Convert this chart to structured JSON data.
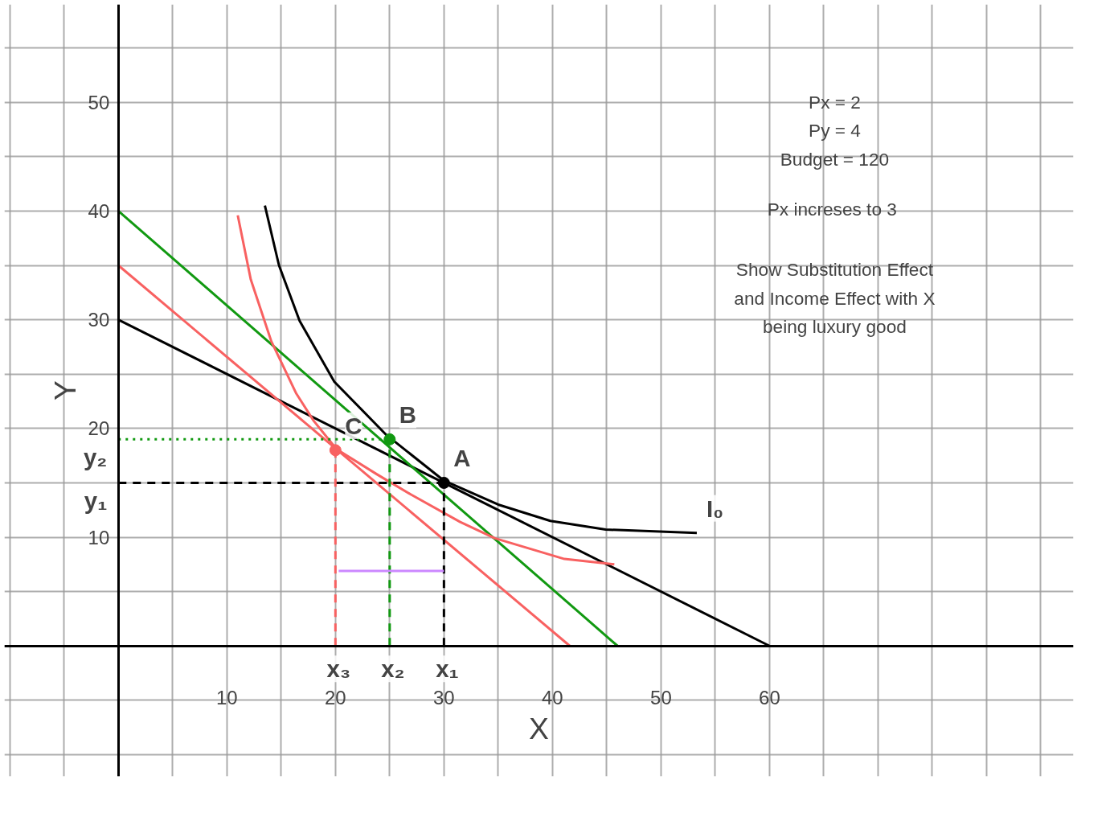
{
  "chart_data": {
    "type": "line",
    "xlabel": "X",
    "ylabel": "Y",
    "xlim": [
      -10.5,
      88
    ],
    "ylim": [
      -12,
      59
    ],
    "xticks": [
      {
        "value": -10,
        "label": null
      },
      {
        "value": -5,
        "label": null
      },
      {
        "value": 0,
        "label": null
      },
      {
        "value": 5,
        "label": null
      },
      10,
      {
        "value": 15,
        "label": null
      },
      20,
      {
        "value": 25,
        "label": null
      },
      30,
      {
        "value": 35,
        "label": null
      },
      40,
      {
        "value": 45,
        "label": null
      },
      50,
      {
        "value": 55,
        "label": null
      },
      60,
      {
        "value": 65,
        "label": null
      },
      {
        "value": 70,
        "label": null
      },
      {
        "value": 75,
        "label": null
      },
      {
        "value": 80,
        "label": null
      },
      {
        "value": 85,
        "label": null
      }
    ],
    "yticks": [
      {
        "value": -10,
        "label": null
      },
      {
        "value": -5,
        "label": null
      },
      {
        "value": 0,
        "label": null
      },
      {
        "value": 5,
        "label": null
      },
      10,
      {
        "value": 15,
        "label": null
      },
      20,
      {
        "value": 25,
        "label": null
      },
      30,
      {
        "value": 35,
        "label": null
      },
      40,
      {
        "value": 45,
        "label": null
      },
      50,
      {
        "value": 55,
        "label": null
      }
    ],
    "grid": true,
    "series": [
      {
        "color": "#000000",
        "x": [
          0,
          60
        ],
        "values": [
          30,
          0
        ]
      },
      {
        "color": "#119911",
        "x": [
          0,
          46
        ],
        "values": [
          40,
          0
        ]
      },
      {
        "color": "#f86161",
        "x": [
          0,
          41.6
        ],
        "values": [
          35,
          0
        ]
      },
      {
        "color": "#000000",
        "x": [
          13.5,
          14.8,
          16.7,
          19.9,
          24.7,
          30,
          35.0,
          39.8,
          44.9,
          53.3
        ],
        "values": [
          40.5,
          35.0,
          29.9,
          24.3,
          19.4,
          15.2,
          13.0,
          11.5,
          10.7,
          10.4
        ]
      },
      {
        "color": "#f86161",
        "x": [
          11.0,
          12.2,
          14.1,
          16.4,
          18.0,
          20.1,
          23.8,
          27.0,
          31.5,
          34.7,
          41.1,
          45.7
        ],
        "values": [
          39.6,
          33.7,
          28.0,
          23.2,
          20.7,
          18.1,
          15.8,
          13.9,
          11.4,
          9.9,
          8.0,
          7.5
        ]
      },
      {
        "color": "#000000",
        "line_style": "dashed",
        "x": [
          0,
          30
        ],
        "values": [
          15,
          15
        ]
      },
      {
        "color": "#000000",
        "line_style": "dashed",
        "x": [
          30,
          30
        ],
        "values": [
          0,
          15
        ]
      },
      {
        "color": "#119911",
        "line_style": "dotted",
        "x": [
          0,
          25
        ],
        "values": [
          19,
          19
        ]
      },
      {
        "color": "#119911",
        "line_style": "dashed",
        "x": [
          25,
          25
        ],
        "values": [
          0,
          19
        ]
      },
      {
        "color": "#f86161",
        "line_style": "dashed",
        "x": [
          20,
          20
        ],
        "values": [
          0,
          18
        ]
      },
      {
        "color": "#cc88ff",
        "x": [
          30,
          20.3
        ],
        "values": [
          6.9,
          6.9
        ]
      },
      {
        "type": "scatter",
        "colors": [
          "#000000",
          "#119911",
          "#f86161"
        ],
        "x": [
          30,
          25,
          20
        ],
        "values": [
          15,
          19,
          18
        ]
      }
    ],
    "annotations": [
      {
        "text": "A",
        "x": 30,
        "y": 15
      },
      {
        "text": "B",
        "x": 25,
        "y": 19
      },
      {
        "text": "C",
        "x": 20,
        "y": 18
      },
      {
        "text": "y₁",
        "x": 0,
        "y": 15
      },
      {
        "text": "y₂",
        "x": 0,
        "y": 19
      },
      {
        "text": "x₃",
        "x": 20,
        "y": 0
      },
      {
        "text": "x₂",
        "x": 25,
        "y": 0
      },
      {
        "text": "x₁",
        "x": 30,
        "y": 0
      },
      {
        "text": "I₀",
        "x": 53.3,
        "y": 10.4
      },
      "Px = 2",
      "Py = 4",
      "Budget = 120",
      "Px  increses to 3",
      "Show Substitution Effect",
      "and Income Effect with X",
      "being luxury good"
    ]
  }
}
